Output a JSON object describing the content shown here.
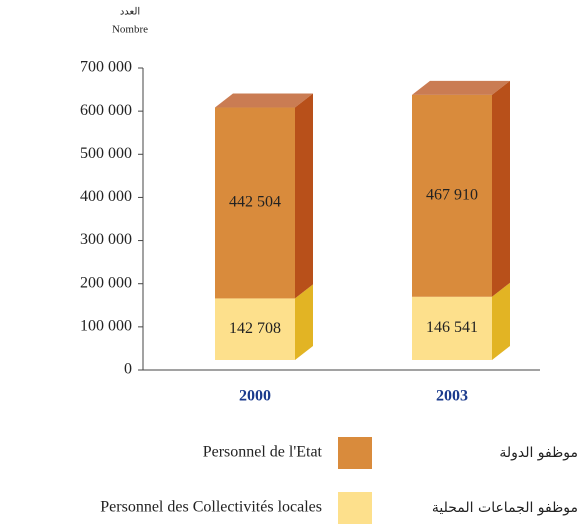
{
  "chart_data": {
    "type": "stacked-bar-3d",
    "y_label_ar": "العدد",
    "y_label": "Nombre",
    "categories": [
      "2000",
      "2003"
    ],
    "series": [
      {
        "name": "Personnel des Collectivités locales",
        "name_ar": "موظفو الجماعات المحلية",
        "color": "#fde08c",
        "side_color": "#e2b424",
        "values": [
          142708,
          146541
        ],
        "value_labels": [
          "142 708",
          "146 541"
        ]
      },
      {
        "name": "Personnel de l'Etat",
        "name_ar": "موظفو الدولة",
        "color": "#d98b3c",
        "side_color": "#b8501a",
        "values": [
          442504,
          467910
        ],
        "value_labels": [
          "442 504",
          "467 910"
        ]
      }
    ],
    "ylim": [
      0,
      700000
    ],
    "yticks": [
      0,
      {
        "value": 100000,
        "label": "100 000"
      },
      {
        "value": 200000,
        "label": "200 000"
      },
      {
        "value": 300000,
        "label": "300 000"
      },
      {
        "value": 400000,
        "label": "400 000"
      },
      {
        "value": 500000,
        "label": "500 000"
      },
      {
        "value": 600000,
        "label": "600 000"
      },
      {
        "value": 700000,
        "label": "700 000"
      }
    ],
    "category_color": "#1a3a8c"
  }
}
